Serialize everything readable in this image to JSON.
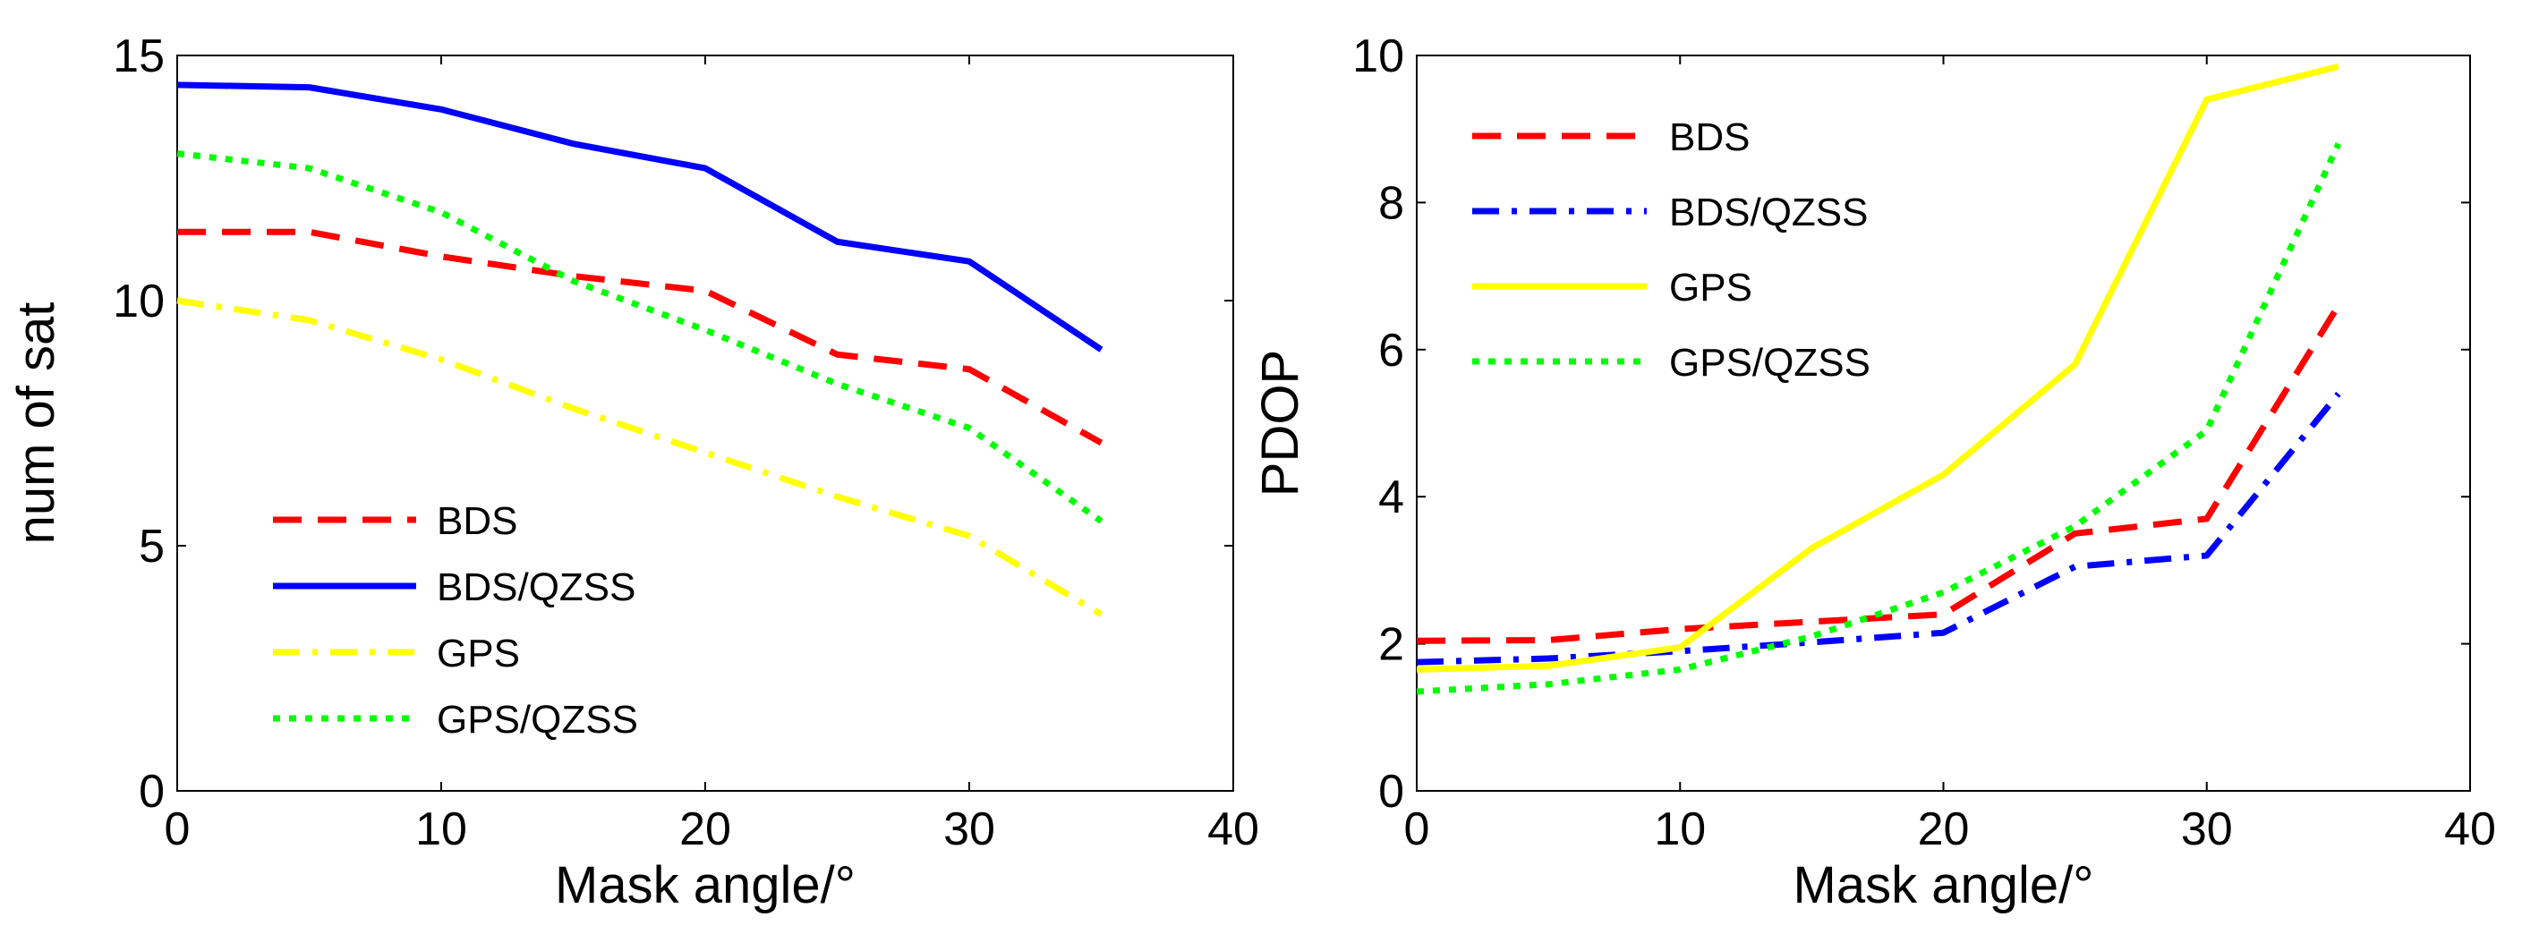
{
  "chart_data": [
    {
      "type": "line",
      "title": "",
      "xlabel": "Mask angle/°",
      "ylabel": "num of sat",
      "xlim": [
        0,
        40
      ],
      "ylim": [
        0,
        15
      ],
      "xticks": [
        0,
        10,
        20,
        30,
        40
      ],
      "yticks": [
        0,
        5,
        10,
        15
      ],
      "grid": false,
      "legend_position": "bottom-left",
      "x": [
        0,
        5,
        10,
        15,
        20,
        25,
        30,
        35
      ],
      "series": [
        {
          "name": "BDS",
          "color": "#ff0000",
          "style": "dashed",
          "values": [
            11.4,
            11.4,
            10.9,
            10.5,
            10.2,
            8.9,
            8.6,
            7.1
          ]
        },
        {
          "name": "BDS/QZSS",
          "color": "#0000ff",
          "style": "solid",
          "values": [
            14.4,
            14.35,
            13.9,
            13.2,
            12.7,
            11.2,
            10.8,
            9.0
          ]
        },
        {
          "name": "GPS",
          "color": "#ffff00",
          "style": "dashdot",
          "values": [
            10.0,
            9.6,
            8.8,
            7.8,
            6.9,
            6.0,
            5.2,
            3.6
          ]
        },
        {
          "name": "GPS/QZSS",
          "color": "#00ff00",
          "style": "dotted",
          "values": [
            13.0,
            12.7,
            11.8,
            10.4,
            9.4,
            8.3,
            7.4,
            5.5
          ]
        }
      ]
    },
    {
      "type": "line",
      "title": "",
      "xlabel": "Mask angle/°",
      "ylabel": "PDOP",
      "xlim": [
        0,
        40
      ],
      "ylim": [
        0,
        10
      ],
      "xticks": [
        0,
        10,
        20,
        30,
        40
      ],
      "yticks": [
        0,
        2,
        4,
        6,
        8,
        10
      ],
      "grid": false,
      "legend_position": "top-left",
      "x": [
        0,
        5,
        10,
        15,
        20,
        25,
        30,
        35
      ],
      "series": [
        {
          "name": "BDS",
          "color": "#ff0000",
          "style": "dashed",
          "values": [
            2.04,
            2.05,
            2.2,
            2.3,
            2.4,
            3.5,
            3.7,
            6.6
          ]
        },
        {
          "name": "BDS/QZSS",
          "color": "#0000ff",
          "style": "dashdot",
          "values": [
            1.75,
            1.8,
            1.9,
            2.02,
            2.15,
            3.05,
            3.2,
            5.4
          ]
        },
        {
          "name": "GPS",
          "color": "#ffff00",
          "style": "solid",
          "values": [
            1.65,
            1.7,
            1.95,
            3.3,
            4.3,
            5.8,
            9.4,
            9.85
          ]
        },
        {
          "name": "GPS/QZSS",
          "color": "#00ff00",
          "style": "dotted",
          "values": [
            1.35,
            1.45,
            1.65,
            2.1,
            2.7,
            3.6,
            4.9,
            8.8
          ]
        }
      ]
    }
  ]
}
